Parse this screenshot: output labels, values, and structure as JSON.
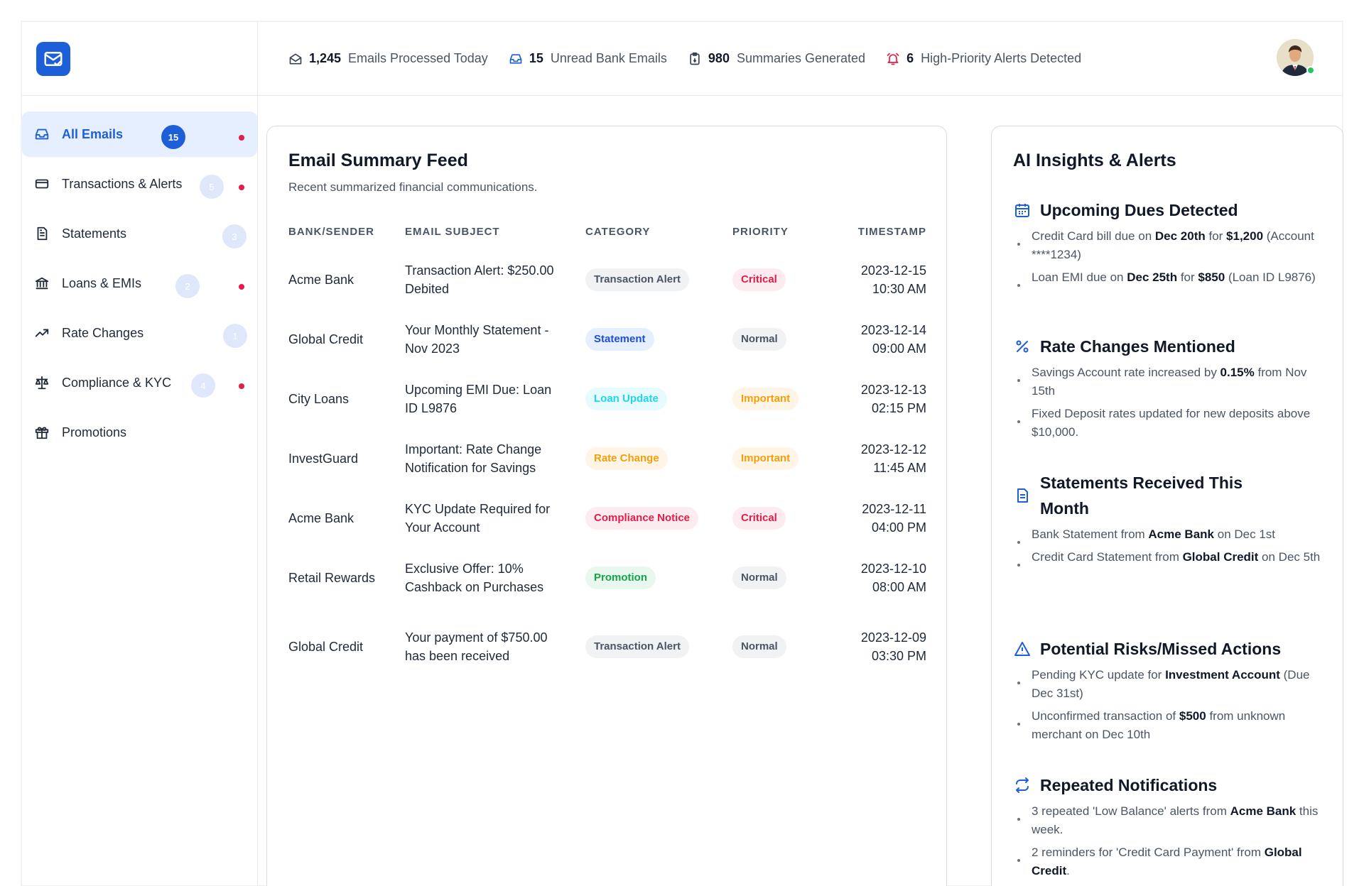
{
  "topbar": {
    "stats": [
      {
        "icon": "mail-open-icon",
        "value": "1,245",
        "label": "Emails Processed Today"
      },
      {
        "icon": "inbox-icon",
        "value": "15",
        "label": "Unread Bank Emails"
      },
      {
        "icon": "clipboard-icon",
        "value": "980",
        "label": "Summaries Generated"
      },
      {
        "icon": "alarm-bell-icon",
        "value": "6",
        "label": "High-Priority Alerts Detected"
      }
    ]
  },
  "sidebar": {
    "items": [
      {
        "label": "All Emails",
        "count": "15",
        "dot": true,
        "icon": "inbox-icon"
      },
      {
        "label": "Transactions & Alerts",
        "count": "5",
        "dot": true,
        "icon": "credit-card-icon"
      },
      {
        "label": "Statements",
        "count": "3",
        "dot": false,
        "icon": "document-icon"
      },
      {
        "label": "Loans & EMIs",
        "count": "2",
        "dot": true,
        "icon": "bank-icon"
      },
      {
        "label": "Rate Changes",
        "count": "1",
        "dot": false,
        "icon": "trend-up-icon"
      },
      {
        "label": "Compliance & KYC",
        "count": "4",
        "dot": true,
        "icon": "scale-icon"
      },
      {
        "label": "Promotions",
        "count": "",
        "dot": false,
        "icon": "gift-icon"
      }
    ]
  },
  "feed": {
    "title": "Email Summary Feed",
    "subtitle": "Recent summarized financial communications.",
    "columns": [
      "BANK/SENDER",
      "EMAIL SUBJECT",
      "CATEGORY",
      "PRIORITY",
      "TIMESTAMP"
    ],
    "rows": [
      {
        "sender": "Acme Bank",
        "subject": "Transaction Alert: $250.00 Debited",
        "category": "Transaction Alert",
        "priority": "Critical",
        "date": "2023-12-15",
        "time": "10:30 AM"
      },
      {
        "sender": "Global Credit",
        "subject": "Your Monthly Statement - Nov 2023",
        "category": "Statement",
        "priority": "Normal",
        "date": "2023-12-14",
        "time": "09:00 AM"
      },
      {
        "sender": "City Loans",
        "subject": "Upcoming EMI Due: Loan ID L9876",
        "category": "Loan Update",
        "priority": "Important",
        "date": "2023-12-13",
        "time": "02:15 PM"
      },
      {
        "sender": "InvestGuard",
        "subject": "Important: Rate Change Notification for Savings",
        "category": "Rate Change",
        "priority": "Important",
        "date": "2023-12-12",
        "time": "11:45 AM"
      },
      {
        "sender": "Acme Bank",
        "subject": "KYC Update Required for Your Account",
        "category": "Compliance Notice",
        "priority": "Critical",
        "date": "2023-12-11",
        "time": "04:00 PM"
      },
      {
        "sender": "Retail Rewards",
        "subject": "Exclusive Offer: 10% Cashback on Purchases",
        "category": "Promotion",
        "priority": "Normal",
        "date": "2023-12-10",
        "time": "08:00 AM"
      },
      {
        "sender": "Global Credit",
        "subject": "Your payment of $750.00 has been received",
        "category": "Transaction Alert",
        "priority": "Normal",
        "date": "2023-12-09",
        "time": "03:30 PM"
      }
    ]
  },
  "insights": {
    "title": "AI Insights & Alerts",
    "sections": [
      {
        "heading": "Upcoming Dues Detected",
        "icon": "calendar-icon",
        "bullets": [
          [
            "Credit Card bill due on ",
            "Dec 20th",
            " for ",
            "$1,200",
            " (Account ****1234)"
          ],
          [
            "Loan EMI due on ",
            "Dec 25th",
            " for ",
            "$850",
            " (Loan ID L9876)"
          ]
        ]
      },
      {
        "heading": "Rate Changes Mentioned",
        "icon": "percent-icon",
        "bullets": [
          [
            "Savings Account rate increased by ",
            "0.15%",
            " from Nov 15th"
          ],
          [
            "Fixed Deposit rates updated for new deposits above $10,000."
          ]
        ]
      },
      {
        "heading": "Statements Received This Month",
        "icon": "file-icon",
        "bullets": [
          [
            "Bank Statement from ",
            "Acme Bank",
            " on Dec 1st"
          ],
          [
            "Credit Card Statement from ",
            "Global Credit",
            " on Dec 5th"
          ]
        ]
      },
      {
        "heading": "Potential Risks/Missed Actions",
        "icon": "warning-icon",
        "bullets": [
          [
            "Pending KYC update for ",
            "Investment Account",
            " (Due Dec 31st)"
          ],
          [
            "Unconfirmed transaction of ",
            "$500",
            " from unknown merchant on Dec 10th"
          ]
        ]
      },
      {
        "heading": "Repeated Notifications",
        "icon": "repeat-icon",
        "bullets": [
          [
            "3 repeated 'Low Balance' alerts from ",
            "Acme Bank",
            " this week."
          ],
          [
            "2 reminders for 'Credit Card Payment' from ",
            "Global Credit",
            "."
          ]
        ]
      }
    ]
  },
  "colors": {
    "accent": "#1d5fd8",
    "critical": "#e11d48",
    "important": "#f59e0b",
    "statement": "#1d4ed8",
    "loan": "#22d3ee",
    "promotion": "#16a34a",
    "online": "#22c55e"
  }
}
